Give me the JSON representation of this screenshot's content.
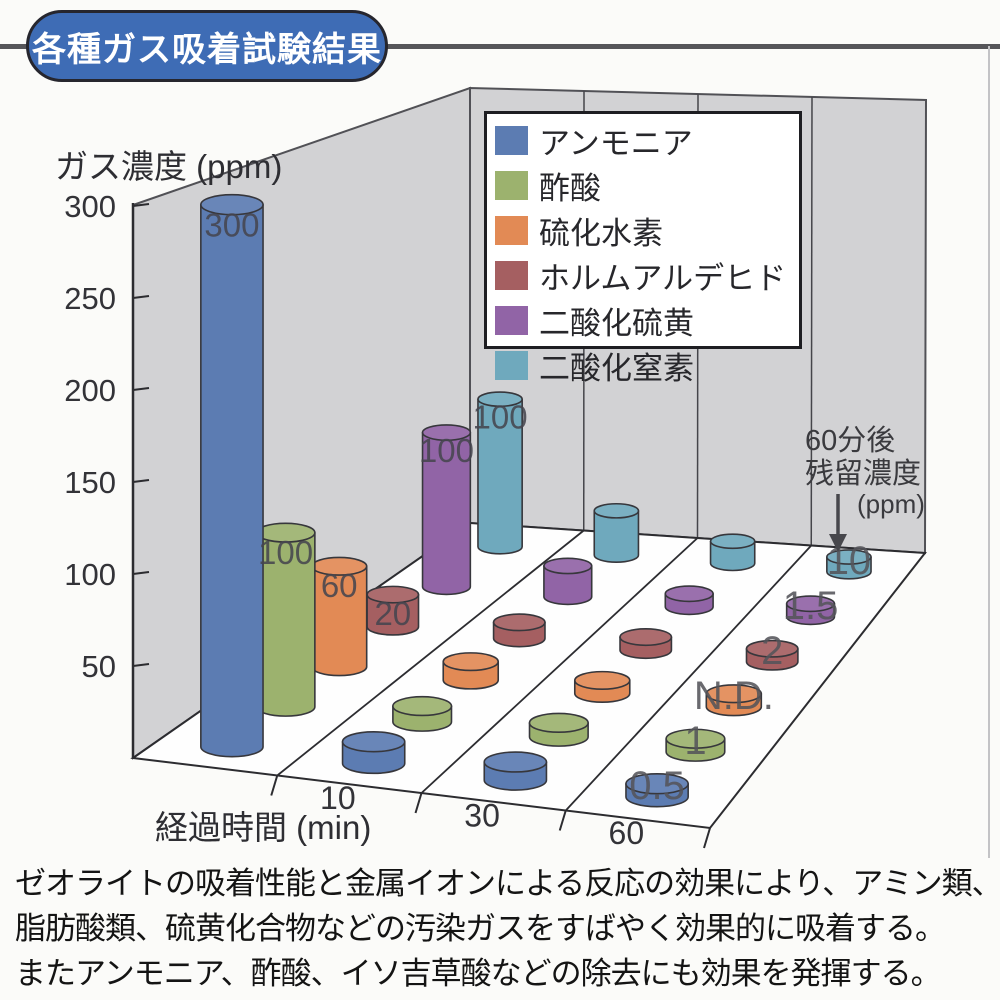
{
  "title": "各種ガス吸着試験結果",
  "y_axis": {
    "title": "ガス濃度 (ppm)",
    "ticks": [
      50,
      100,
      150,
      200,
      250,
      300
    ],
    "max": 300
  },
  "x_axis": {
    "title": "経過時間 (min)",
    "tick_labels": [
      "10",
      "30",
      "60"
    ]
  },
  "annotation": {
    "line1": "60分後",
    "line2": "残留濃度",
    "unit": "(ppm)"
  },
  "chart_data": {
    "type": "bar",
    "style": "3d-cylinder",
    "x": [
      0,
      10,
      30,
      60
    ],
    "xlabel": "経過時間 (min)",
    "ylabel": "ガス濃度 (ppm)",
    "ylim": [
      0,
      300
    ],
    "legend_position": "top-right",
    "unlabeled_values_estimated": true,
    "series": [
      {
        "name": "アンモニア",
        "color": "#5c7cb2",
        "values": [
          300,
          12,
          10,
          0.5
        ],
        "start_label": "300",
        "end_label": "0.5"
      },
      {
        "name": "酢酸",
        "color": "#9cb26e",
        "values": [
          100,
          9,
          8,
          1
        ],
        "start_label": "100",
        "end_label": "1"
      },
      {
        "name": "硫化水素",
        "color": "#e28a55",
        "values": [
          60,
          11,
          6,
          0
        ],
        "start_label": "60",
        "end_label": "N.D."
      },
      {
        "name": "ホルムアルデヒド",
        "color": "#a55f61",
        "values": [
          20,
          10,
          6,
          2
        ],
        "start_label": "20",
        "end_label": "2"
      },
      {
        "name": "二酸化硫黄",
        "color": "#9164a6",
        "values": [
          100,
          20,
          8,
          1.5
        ],
        "start_label": "100",
        "end_label": "1.5"
      },
      {
        "name": "二酸化窒素",
        "color": "#6fa9bd",
        "values": [
          100,
          30,
          15,
          10
        ],
        "start_label": "100",
        "end_label": "10"
      }
    ],
    "note": "残留濃度ラベル(60分後): 0.5 / 1 / N.D. / 2 / 1.5 / 10 ppm, 初期濃度ラベル: 300 / 100 / 60 / 20 / 100 / 100 ppm"
  },
  "caption": {
    "lines": [
      "ゼオライトの吸着性能と金属イオンによる反応の効果により、アミン類、",
      "脂肪酸類、硫黄化合物などの汚染ガスをすばやく効果的に吸着する。",
      "またアンモニア、酢酸、イソ吉草酸などの除去にも効果を発揮する。"
    ]
  },
  "colors": {
    "title_bg": "#3e6cb5",
    "rule": "#56565a",
    "wall": "#d2d2d4",
    "wall_edge": "#515156",
    "floor": "#fefefe",
    "line": "#2c2c30",
    "axis_text": "#333338",
    "bar_label": "#45454e",
    "end_label": "#54545a"
  }
}
